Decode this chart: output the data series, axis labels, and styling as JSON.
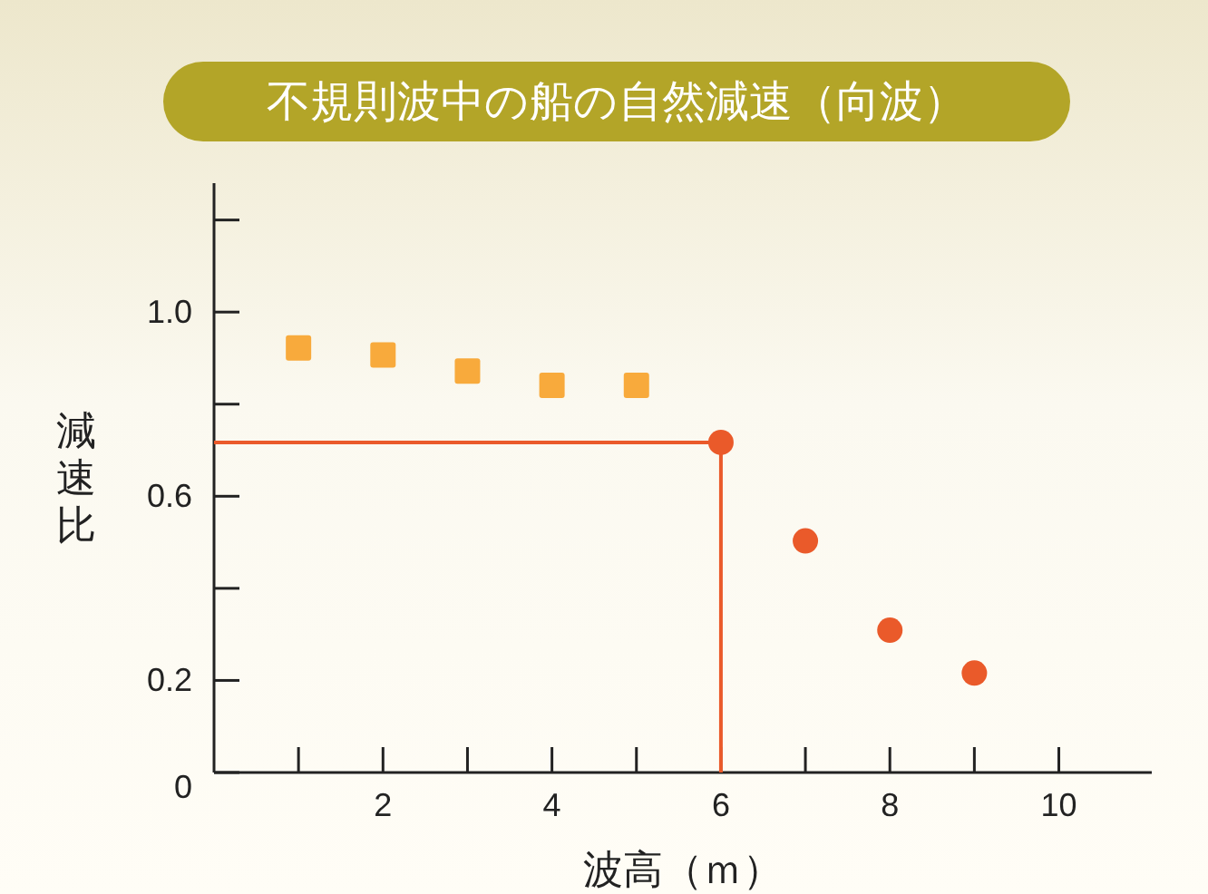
{
  "chart_data": {
    "type": "scatter",
    "title": "不規則波中の船の自然減速（向波）",
    "xlabel": "波高（ｍ）",
    "ylabel": "減速比",
    "xlim": [
      0,
      11.1
    ],
    "ylim": [
      0,
      1.28
    ],
    "xticks": [
      {
        "value": 1,
        "label": null
      },
      2,
      {
        "value": 3,
        "label": null
      },
      4,
      {
        "value": 5,
        "label": null
      },
      6,
      {
        "value": 7,
        "label": null
      },
      8,
      {
        "value": 9,
        "label": null
      },
      10
    ],
    "yticks": [
      {
        "value": 0,
        "label": "0"
      },
      0.2,
      {
        "value": 0.4,
        "label": null
      },
      0.6,
      {
        "value": 0.8,
        "label": null
      },
      {
        "value": 1,
        "label": "1.0"
      },
      {
        "value": 1.2,
        "label": null
      }
    ],
    "series": [
      {
        "type": "line",
        "color": "#ea5a2a",
        "x": [
          0,
          6,
          6
        ],
        "values": [
          0.717,
          0.717,
          0
        ],
        "marker": "none"
      },
      {
        "type": "scatter",
        "color": "#f8aa3c",
        "marker": "square",
        "x": [
          1,
          2,
          3,
          4,
          5
        ],
        "values": [
          0.922,
          0.907,
          0.872,
          0.841,
          0.841
        ]
      },
      {
        "type": "scatter",
        "color": "#ea5a2a",
        "marker": "circle",
        "x": [
          6,
          7,
          8,
          9
        ],
        "values": [
          0.717,
          0.503,
          0.309,
          0.216
        ]
      }
    ]
  }
}
